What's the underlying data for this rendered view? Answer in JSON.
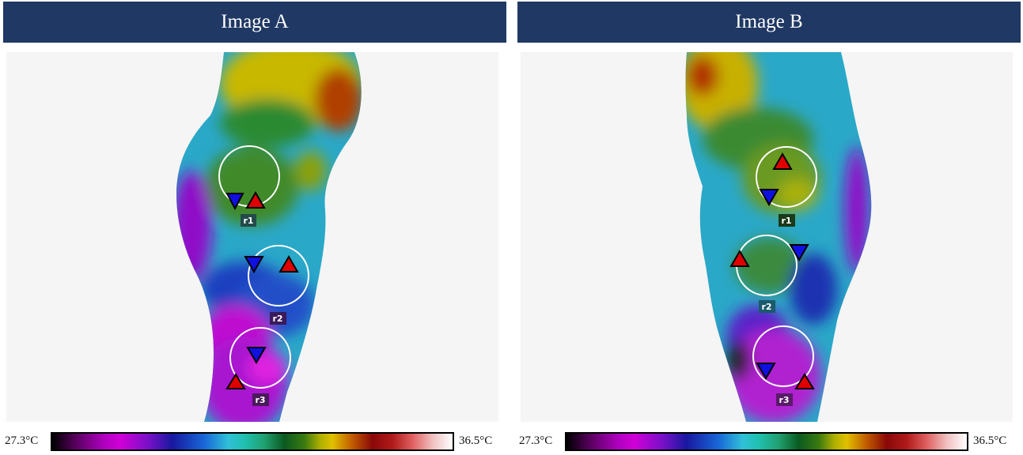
{
  "panels": [
    {
      "title": "Image A",
      "rois": [
        "r1",
        "r2",
        "r3"
      ],
      "scale": {
        "min": "27.3°C",
        "max": "36.5°C"
      }
    },
    {
      "title": "Image B",
      "rois": [
        "r1",
        "r2",
        "r3"
      ],
      "scale": {
        "min": "27.3°C",
        "max": "36.5°C"
      }
    }
  ],
  "colors": {
    "header_bg": "#203864",
    "roi_circle": "#ffffff",
    "max_marker": "#e00000",
    "min_marker": "#1010e0",
    "palette": "iron-rainbow thermal"
  }
}
